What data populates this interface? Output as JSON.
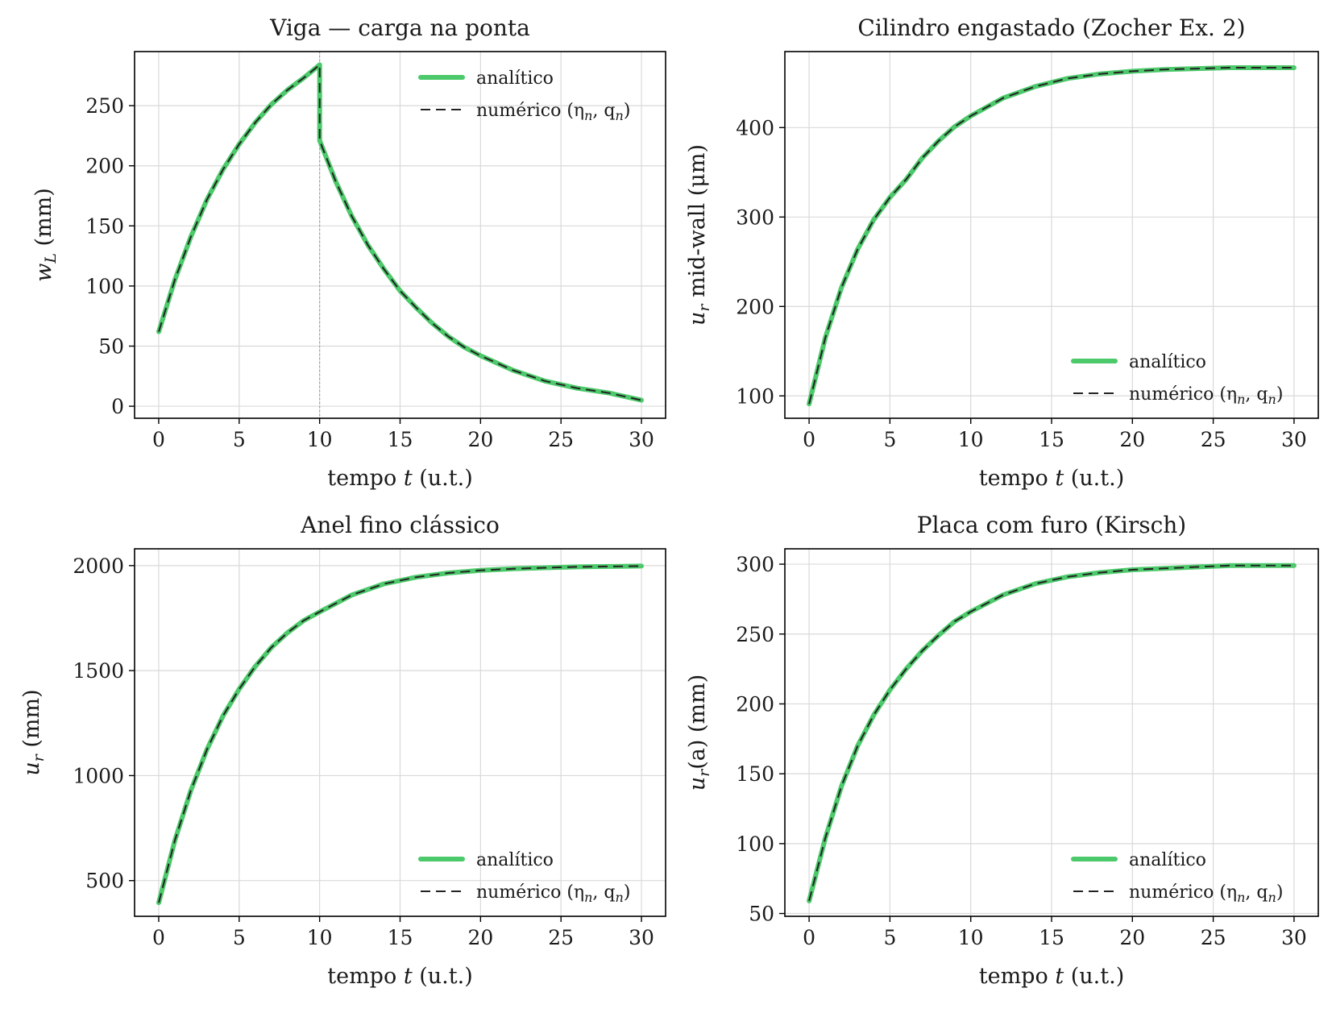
{
  "figure": {
    "background": "#ffffff"
  },
  "colors": {
    "analytic": "#4cc96a",
    "numeric": "#222222",
    "grid": "#d9d9d9",
    "marker_line": "#9a9a9a"
  },
  "legend": {
    "analytic": "analítico",
    "numeric": "numérico (η",
    "numeric_sub1": "n",
    "numeric_mid": ", q",
    "numeric_sub2": "n",
    "numeric_end": ")"
  },
  "chart_data": [
    {
      "type": "line",
      "title": "Viga — carga na ponta",
      "xlabel": {
        "pre": "tempo ",
        "var": "t",
        "post": " (u.t.)"
      },
      "ylabel": {
        "var": "w",
        "sub": "L",
        "post": " (mm)"
      },
      "xlim": [
        -1.5,
        31.5
      ],
      "ylim": [
        -10,
        295
      ],
      "xticks": [
        0,
        5,
        10,
        15,
        20,
        25,
        30
      ],
      "yticks": [
        0,
        50,
        100,
        150,
        200,
        250
      ],
      "ytick_labels": [
        "0",
        "50",
        "100",
        "150",
        "200",
        "250"
      ],
      "vline_x": 10,
      "legend_position": "upper right",
      "series": [
        {
          "name": "analítico",
          "x": [
            0,
            1,
            2,
            3,
            4,
            5,
            6,
            7,
            8,
            9,
            10,
            10,
            11,
            12,
            13,
            14,
            15,
            16,
            17,
            18,
            19,
            20,
            22,
            24,
            26,
            28,
            30
          ],
          "y": [
            62,
            105,
            141,
            172,
            197,
            218,
            236,
            251,
            263,
            273,
            284,
            221,
            187,
            158,
            134,
            114,
            96,
            82,
            69,
            58,
            49,
            42,
            30,
            21,
            15,
            11,
            5
          ]
        },
        {
          "name": "numérico (η_n, q_n)",
          "x": [
            0,
            1,
            2,
            3,
            4,
            5,
            6,
            7,
            8,
            9,
            10,
            10,
            11,
            12,
            13,
            14,
            15,
            16,
            17,
            18,
            19,
            20,
            22,
            24,
            26,
            28,
            30
          ],
          "y": [
            62,
            105,
            141,
            172,
            197,
            218,
            236,
            251,
            263,
            273,
            284,
            221,
            187,
            158,
            134,
            114,
            96,
            82,
            69,
            58,
            49,
            42,
            30,
            21,
            15,
            11,
            5
          ]
        }
      ]
    },
    {
      "type": "line",
      "title": "Cilindro engastado (Zocher Ex. 2)",
      "xlabel": {
        "pre": "tempo ",
        "var": "t",
        "post": " (u.t.)"
      },
      "ylabel": {
        "var": "u",
        "sub": "r",
        "post": " mid-wall (μm)"
      },
      "xlim": [
        -1.5,
        31.5
      ],
      "ylim": [
        75,
        485
      ],
      "xticks": [
        0,
        5,
        10,
        15,
        20,
        25,
        30
      ],
      "yticks": [
        100,
        200,
        300,
        400
      ],
      "ytick_labels": [
        "100",
        "200",
        "300",
        "400"
      ],
      "legend_position": "lower right",
      "series": [
        {
          "name": "analítico",
          "x": [
            0,
            1,
            2,
            3,
            4,
            5,
            6,
            7,
            8,
            9,
            10,
            12,
            14,
            16,
            18,
            20,
            22,
            24,
            26,
            28,
            30
          ],
          "y": [
            91,
            165,
            221,
            264,
            297,
            322,
            342,
            366,
            385,
            401,
            413,
            433,
            446,
            455,
            460,
            463,
            465,
            466,
            467,
            467,
            467
          ]
        },
        {
          "name": "numérico (η_n, q_n)",
          "x": [
            0,
            1,
            2,
            3,
            4,
            5,
            6,
            7,
            8,
            9,
            10,
            12,
            14,
            16,
            18,
            20,
            22,
            24,
            26,
            28,
            30
          ],
          "y": [
            91,
            165,
            221,
            264,
            297,
            322,
            342,
            366,
            385,
            401,
            413,
            433,
            446,
            455,
            460,
            463,
            465,
            466,
            467,
            467,
            467
          ]
        }
      ]
    },
    {
      "type": "line",
      "title": "Anel fino clássico",
      "xlabel": {
        "pre": "tempo ",
        "var": "t",
        "post": " (u.t.)"
      },
      "ylabel": {
        "var": "u",
        "sub": "r",
        "post": " (mm)"
      },
      "xlim": [
        -1.5,
        31.5
      ],
      "ylim": [
        330,
        2080
      ],
      "xticks": [
        0,
        5,
        10,
        15,
        20,
        25,
        30
      ],
      "yticks": [
        500,
        1000,
        1500,
        2000
      ],
      "ytick_labels": [
        "500",
        "1000",
        "1500",
        "2000"
      ],
      "legend_position": "lower right",
      "series": [
        {
          "name": "analítico",
          "x": [
            0,
            1,
            2,
            3,
            4,
            5,
            6,
            7,
            8,
            9,
            10,
            12,
            14,
            16,
            18,
            20,
            22,
            24,
            26,
            28,
            30
          ],
          "y": [
            395,
            690,
            930,
            1125,
            1285,
            1412,
            1520,
            1610,
            1680,
            1738,
            1780,
            1860,
            1913,
            1945,
            1965,
            1977,
            1985,
            1990,
            1994,
            1996,
            1998
          ]
        },
        {
          "name": "numérico (η_n, q_n)",
          "x": [
            0,
            1,
            2,
            3,
            4,
            5,
            6,
            7,
            8,
            9,
            10,
            12,
            14,
            16,
            18,
            20,
            22,
            24,
            26,
            28,
            30
          ],
          "y": [
            395,
            690,
            930,
            1125,
            1285,
            1412,
            1520,
            1610,
            1680,
            1738,
            1780,
            1860,
            1913,
            1945,
            1965,
            1977,
            1985,
            1990,
            1994,
            1996,
            1998
          ]
        }
      ]
    },
    {
      "type": "line",
      "title": "Placa com furo (Kirsch)",
      "xlabel": {
        "pre": "tempo ",
        "var": "t",
        "post": " (u.t.)"
      },
      "ylabel": {
        "var": "u",
        "sub": "r",
        "post": "(a) (mm)"
      },
      "xlim": [
        -1.5,
        31.5
      ],
      "ylim": [
        48,
        311
      ],
      "xticks": [
        0,
        5,
        10,
        15,
        20,
        25,
        30
      ],
      "yticks": [
        50,
        100,
        150,
        200,
        250,
        300
      ],
      "ytick_labels": [
        "50",
        "100",
        "150",
        "200",
        "250",
        "300"
      ],
      "legend_position": "lower right",
      "series": [
        {
          "name": "analítico",
          "x": [
            0,
            1,
            2,
            3,
            4,
            5,
            6,
            7,
            8,
            9,
            10,
            12,
            14,
            16,
            18,
            20,
            22,
            24,
            26,
            28,
            30
          ],
          "y": [
            59,
            104,
            141,
            170,
            192,
            210,
            225,
            238,
            249,
            259,
            266,
            278,
            286,
            291,
            294,
            296,
            297,
            298,
            299,
            299,
            299
          ]
        },
        {
          "name": "numérico (η_n, q_n)",
          "x": [
            0,
            1,
            2,
            3,
            4,
            5,
            6,
            7,
            8,
            9,
            10,
            12,
            14,
            16,
            18,
            20,
            22,
            24,
            26,
            28,
            30
          ],
          "y": [
            59,
            104,
            141,
            170,
            192,
            210,
            225,
            238,
            249,
            259,
            266,
            278,
            286,
            291,
            294,
            296,
            297,
            298,
            299,
            299,
            299
          ]
        }
      ]
    }
  ]
}
